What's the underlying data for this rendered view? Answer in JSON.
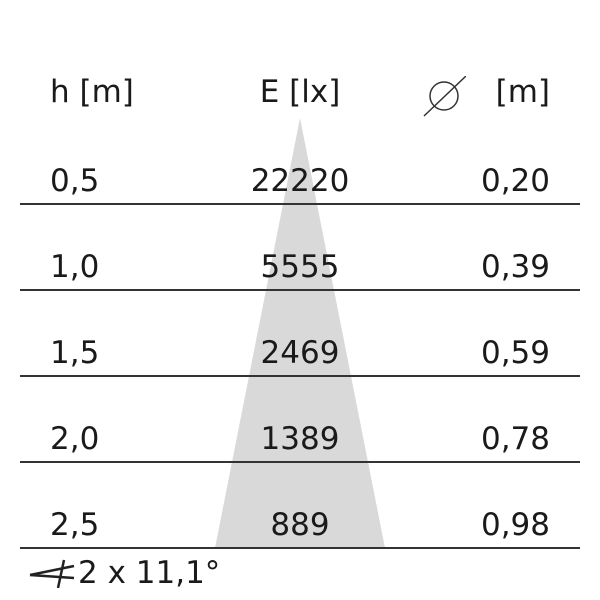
{
  "header": {
    "height": "h [m]",
    "illuminance": "E [lx]",
    "diameter_symbol": "diameter-icon",
    "diameter_unit": "[m]"
  },
  "rows": [
    {
      "h": "0,5",
      "E": "22220",
      "d": "0,20"
    },
    {
      "h": "1,0",
      "E": "5555",
      "d": "0,39"
    },
    {
      "h": "1,5",
      "E": "2469",
      "d": "0,59"
    },
    {
      "h": "2,0",
      "E": "1389",
      "d": "0,78"
    },
    {
      "h": "2,5",
      "E": "889",
      "d": "0,98"
    }
  ],
  "beam_angle": "2 x 11,1°",
  "colors": {
    "cone": "#d9d9d9",
    "text": "#1a1a1a"
  }
}
